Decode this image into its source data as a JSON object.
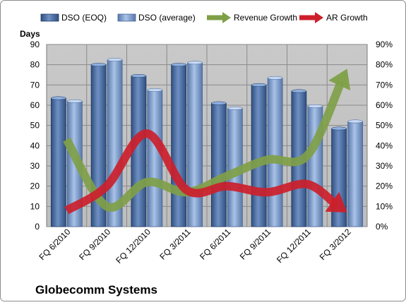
{
  "chart_data": {
    "type": "bar",
    "title": "Globecomm Systems",
    "ylabel": "Days",
    "categories": [
      "FQ 6/2010",
      "FQ 9/2010",
      "FQ 12/2010",
      "FQ 3/2011",
      "FQ 6/2011",
      "FQ 9/2011",
      "FQ 12/2011",
      "FQ 3/2012"
    ],
    "ylim": [
      0,
      90
    ],
    "yticks": [
      0,
      10,
      20,
      30,
      40,
      50,
      60,
      70,
      80,
      90
    ],
    "y2lim": [
      0,
      0.9
    ],
    "y2ticks": [
      "0%",
      "10%",
      "20%",
      "30%",
      "40%",
      "50%",
      "60%",
      "70%",
      "80%",
      "90%"
    ],
    "grid": true,
    "legend_position": "top",
    "series": [
      {
        "name": "DSO (EOQ)",
        "kind": "bar",
        "axis": "left",
        "color": "#4a6a9c",
        "values": [
          63.5,
          80,
          74.5,
          80,
          61,
          70,
          67,
          48.5
        ]
      },
      {
        "name": "DSO (average)",
        "kind": "bar",
        "axis": "left",
        "color": "#7f9fcf",
        "values": [
          62,
          82.5,
          67.5,
          81,
          58.5,
          73.5,
          59.5,
          52
        ]
      },
      {
        "name": "Revenue Growth",
        "kind": "line-arrow",
        "axis": "right",
        "color": "#7fa048",
        "values": [
          0.43,
          0.1,
          0.22,
          0.17,
          0.25,
          0.33,
          0.35,
          0.78
        ]
      },
      {
        "name": "AR Growth",
        "kind": "line-arrow",
        "axis": "right",
        "color": "#cc1f2b",
        "values": [
          0.08,
          0.2,
          0.46,
          0.18,
          0.2,
          0.17,
          0.21,
          0.07
        ]
      }
    ]
  }
}
